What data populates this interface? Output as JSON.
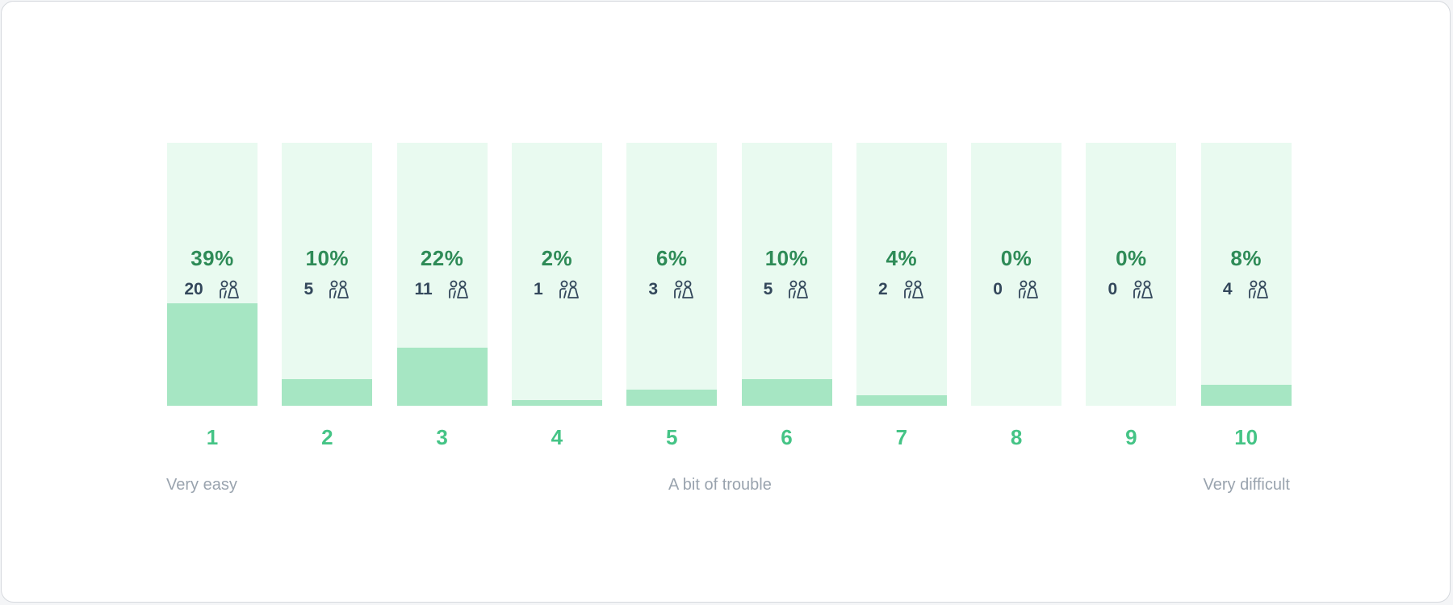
{
  "chart_data": {
    "type": "bar",
    "categories": [
      "1",
      "2",
      "3",
      "4",
      "5",
      "6",
      "7",
      "8",
      "9",
      "10"
    ],
    "values": [
      39,
      10,
      22,
      2,
      6,
      10,
      4,
      0,
      0,
      8
    ],
    "percent_labels": [
      "39%",
      "10%",
      "22%",
      "2%",
      "6%",
      "10%",
      "4%",
      "0%",
      "0%",
      "8%"
    ],
    "response_counts": [
      "20",
      "5",
      "11",
      "1",
      "3",
      "5",
      "2",
      "0",
      "0",
      "4"
    ],
    "ylim": [
      0,
      100
    ],
    "grid": false,
    "legend": "none",
    "scale_labels": {
      "low": "Very easy",
      "mid": "A bit of trouble",
      "high": "Very difficult"
    },
    "colors": {
      "track": "#e9faf0",
      "fill": "#a6e6c3",
      "percent_text": "#2e8b57",
      "count_text": "#33475b",
      "category_text": "#45c486",
      "scale_text": "#99a3ae"
    },
    "count_icon": "people-icon"
  }
}
